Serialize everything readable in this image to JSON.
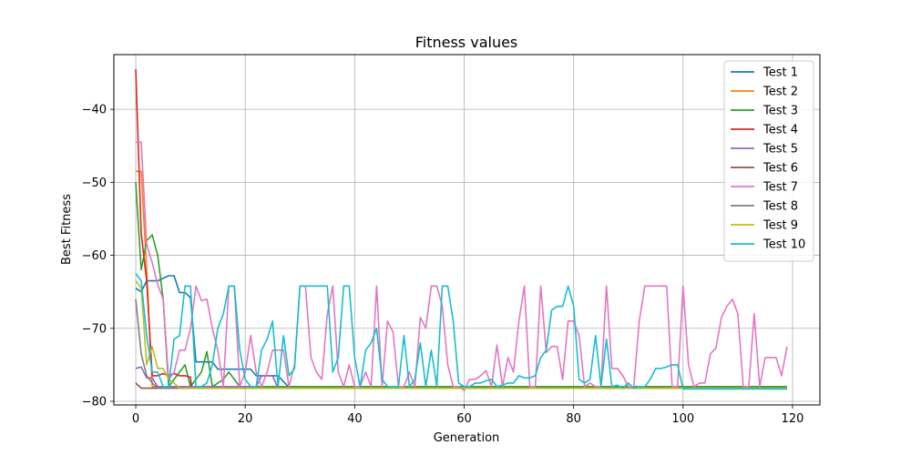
{
  "chart_data": {
    "type": "line",
    "title": "Fitness values",
    "xlabel": "Generation",
    "ylabel": "Best Fitness",
    "xlim": [
      -4,
      125
    ],
    "ylim": [
      -80.5,
      -32.5
    ],
    "xticks": [
      0,
      20,
      40,
      60,
      80,
      100,
      120
    ],
    "yticks": [
      -80,
      -70,
      -60,
      -50,
      -40
    ],
    "grid": true,
    "legend_position": "top-right",
    "series": [
      {
        "name": "Test 1",
        "color": "#1f77b4",
        "points": [
          [
            0,
            -64.5
          ],
          [
            1,
            -65.0
          ],
          [
            2,
            -63.5
          ],
          [
            4,
            -63.5
          ],
          [
            6,
            -62.8
          ],
          [
            7,
            -62.8
          ],
          [
            8,
            -65.1
          ],
          [
            9,
            -65.1
          ],
          [
            10,
            -65.8
          ],
          [
            11,
            -74.6
          ],
          [
            14,
            -74.6
          ],
          [
            15,
            -75.6
          ],
          [
            17,
            -75.6
          ],
          [
            19,
            -75.6
          ],
          [
            21,
            -75.6
          ],
          [
            22,
            -76.5
          ],
          [
            26,
            -76.5
          ],
          [
            28,
            -78.1
          ],
          [
            119,
            -78.1
          ]
        ]
      },
      {
        "name": "Test 2",
        "color": "#ff7f0e",
        "points": [
          [
            0,
            -48.5
          ],
          [
            1,
            -48.5
          ],
          [
            2,
            -62.0
          ],
          [
            3,
            -78.0
          ],
          [
            119,
            -78.0
          ]
        ]
      },
      {
        "name": "Test 3",
        "color": "#2ca02c",
        "points": [
          [
            0,
            -50.0
          ],
          [
            1,
            -62.0
          ],
          [
            2,
            -58.0
          ],
          [
            3,
            -57.2
          ],
          [
            4,
            -60.0
          ],
          [
            5,
            -66.0
          ],
          [
            6,
            -78.0
          ],
          [
            8,
            -76.0
          ],
          [
            9,
            -75.0
          ],
          [
            10,
            -78.0
          ],
          [
            11,
            -77.0
          ],
          [
            12,
            -76.0
          ],
          [
            13,
            -73.2
          ],
          [
            14,
            -78.0
          ],
          [
            16,
            -77.0
          ],
          [
            17,
            -76.0
          ],
          [
            19,
            -78.0
          ],
          [
            119,
            -78.0
          ]
        ]
      },
      {
        "name": "Test 4",
        "color": "#d62728",
        "points": [
          [
            0,
            -34.5
          ],
          [
            1,
            -57.0
          ],
          [
            2,
            -63.5
          ],
          [
            3,
            -76.5
          ],
          [
            4,
            -76.5
          ],
          [
            5,
            -76.2
          ],
          [
            6,
            -76.5
          ],
          [
            7,
            -76.2
          ],
          [
            8,
            -76.5
          ],
          [
            9,
            -76.5
          ],
          [
            10,
            -76.7
          ],
          [
            10.2,
            -78.2
          ],
          [
            119,
            -78.2
          ]
        ]
      },
      {
        "name": "Test 5",
        "color": "#9467bd",
        "points": [
          [
            0,
            -75.5
          ],
          [
            1,
            -75.3
          ],
          [
            2,
            -76.8
          ],
          [
            3,
            -76.8
          ],
          [
            4,
            -78.0
          ],
          [
            22,
            -78.0
          ],
          [
            23,
            -76.5
          ],
          [
            25,
            -76.5
          ],
          [
            26,
            -78.2
          ],
          [
            119,
            -78.2
          ]
        ]
      },
      {
        "name": "Test 6",
        "color": "#8c564b",
        "points": [
          [
            0,
            -77.5
          ],
          [
            1,
            -78.2
          ],
          [
            119,
            -78.2
          ]
        ]
      },
      {
        "name": "Test 7",
        "color": "#e377c2",
        "points": [
          [
            0,
            -44.5
          ],
          [
            1,
            -44.5
          ],
          [
            2,
            -58.5
          ],
          [
            3,
            -61.0
          ],
          [
            4,
            -64.0
          ],
          [
            5,
            -66.0
          ],
          [
            6,
            -77.0
          ],
          [
            7,
            -76.0
          ],
          [
            8,
            -73.0
          ],
          [
            9,
            -73.0
          ],
          [
            10,
            -70.0
          ],
          [
            11,
            -64.2
          ],
          [
            12,
            -66.2
          ],
          [
            13,
            -66.0
          ],
          [
            14,
            -70.0
          ],
          [
            15,
            -73.0
          ],
          [
            16,
            -78.0
          ],
          [
            17,
            -64.2
          ],
          [
            18,
            -64.2
          ],
          [
            19,
            -78.0
          ],
          [
            20,
            -76.0
          ],
          [
            21,
            -71.0
          ],
          [
            22,
            -76.0
          ],
          [
            23,
            -78.0
          ],
          [
            24,
            -76.0
          ],
          [
            25,
            -73.0
          ],
          [
            26,
            -73.0
          ],
          [
            27,
            -73.0
          ],
          [
            28,
            -78.0
          ],
          [
            29,
            -75.0
          ],
          [
            30,
            -64.2
          ],
          [
            31,
            -64.2
          ],
          [
            32,
            -74.0
          ],
          [
            33,
            -76.0
          ],
          [
            34,
            -77.0
          ],
          [
            35,
            -68.0
          ],
          [
            36,
            -64.2
          ],
          [
            37,
            -76.0
          ],
          [
            38,
            -78.0
          ],
          [
            39,
            -75.0
          ],
          [
            40,
            -78.0
          ],
          [
            41,
            -78.0
          ],
          [
            42,
            -76.0
          ],
          [
            43,
            -78.0
          ],
          [
            44,
            -64.2
          ],
          [
            45,
            -78.0
          ],
          [
            46,
            -69.0
          ],
          [
            47,
            -70.5
          ],
          [
            48,
            -78.0
          ],
          [
            49,
            -78.0
          ],
          [
            50,
            -76.0
          ],
          [
            51,
            -78.0
          ],
          [
            52,
            -68.5
          ],
          [
            53,
            -70.0
          ],
          [
            54,
            -64.2
          ],
          [
            55,
            -64.2
          ],
          [
            56,
            -67.0
          ],
          [
            57,
            -75.0
          ],
          [
            58,
            -78.0
          ],
          [
            59,
            -78.0
          ],
          [
            60,
            -78.5
          ],
          [
            61,
            -77.0
          ],
          [
            62,
            -77.0
          ],
          [
            63,
            -76.5
          ],
          [
            64,
            -75.8
          ],
          [
            65,
            -78.0
          ],
          [
            66,
            -72.3
          ],
          [
            67,
            -78.0
          ],
          [
            68,
            -74.0
          ],
          [
            69,
            -76.0
          ],
          [
            70,
            -69.0
          ],
          [
            71,
            -64.2
          ],
          [
            72,
            -78.0
          ],
          [
            73,
            -78.0
          ],
          [
            74,
            -64.2
          ],
          [
            75,
            -73.3
          ],
          [
            76,
            -72.5
          ],
          [
            77,
            -72.5
          ],
          [
            78,
            -77.0
          ],
          [
            79,
            -69.0
          ],
          [
            80,
            -69.0
          ],
          [
            81,
            -71.0
          ],
          [
            82,
            -78.0
          ],
          [
            83,
            -77.5
          ],
          [
            84,
            -78.0
          ],
          [
            85,
            -78.0
          ],
          [
            86,
            -64.2
          ],
          [
            87,
            -75.5
          ],
          [
            88,
            -75.5
          ],
          [
            89,
            -76.5
          ],
          [
            90,
            -78.0
          ],
          [
            91,
            -78.0
          ],
          [
            92,
            -69.0
          ],
          [
            93,
            -64.2
          ],
          [
            94,
            -64.2
          ],
          [
            95,
            -64.2
          ],
          [
            96,
            -64.2
          ],
          [
            97,
            -64.2
          ],
          [
            98,
            -78.0
          ],
          [
            99,
            -78.0
          ],
          [
            100,
            -64.2
          ],
          [
            101,
            -75.0
          ],
          [
            102,
            -78.0
          ],
          [
            103,
            -77.5
          ],
          [
            104,
            -77.5
          ],
          [
            105,
            -73.5
          ],
          [
            106,
            -72.7
          ],
          [
            107,
            -68.5
          ],
          [
            108,
            -67.0
          ],
          [
            109,
            -66.0
          ],
          [
            110,
            -68.0
          ],
          [
            111,
            -78.0
          ],
          [
            112,
            -78.0
          ],
          [
            113,
            -68.0
          ],
          [
            114,
            -78.0
          ],
          [
            115,
            -74.0
          ],
          [
            116,
            -74.0
          ],
          [
            117,
            -74.0
          ],
          [
            118,
            -76.5
          ],
          [
            119,
            -72.5
          ]
        ]
      },
      {
        "name": "Test 8",
        "color": "#7f7f7f",
        "points": [
          [
            0,
            -66.0
          ],
          [
            1,
            -73.5
          ],
          [
            2,
            -76.5
          ],
          [
            3,
            -77.5
          ],
          [
            4,
            -78.2
          ],
          [
            119,
            -78.2
          ]
        ]
      },
      {
        "name": "Test 9",
        "color": "#bcbd22",
        "points": [
          [
            0,
            -63.5
          ],
          [
            1,
            -64.5
          ],
          [
            2,
            -75.0
          ],
          [
            3,
            -72.5
          ],
          [
            4,
            -75.5
          ],
          [
            5,
            -75.5
          ],
          [
            6,
            -77.0
          ],
          [
            7,
            -77.5
          ],
          [
            8,
            -78.2
          ],
          [
            119,
            -78.2
          ]
        ]
      },
      {
        "name": "Test 10",
        "color": "#17becf",
        "points": [
          [
            0,
            -62.5
          ],
          [
            1,
            -63.5
          ],
          [
            2,
            -71.0
          ],
          [
            3,
            -76.0
          ],
          [
            4,
            -76.0
          ],
          [
            5,
            -78.0
          ],
          [
            6,
            -78.0
          ],
          [
            7,
            -71.5
          ],
          [
            8,
            -71.0
          ],
          [
            9,
            -64.2
          ],
          [
            10,
            -64.2
          ],
          [
            11,
            -78.0
          ],
          [
            12,
            -78.0
          ],
          [
            13,
            -77.5
          ],
          [
            14,
            -75.0
          ],
          [
            15,
            -70.0
          ],
          [
            16,
            -68.0
          ],
          [
            17,
            -64.2
          ],
          [
            18,
            -64.2
          ],
          [
            19,
            -73.0
          ],
          [
            20,
            -77.0
          ],
          [
            21,
            -78.0
          ],
          [
            22,
            -78.0
          ],
          [
            23,
            -73.0
          ],
          [
            24,
            -71.5
          ],
          [
            25,
            -69.0
          ],
          [
            26,
            -78.0
          ],
          [
            27,
            -71.0
          ],
          [
            28,
            -76.5
          ],
          [
            29,
            -75.5
          ],
          [
            30,
            -64.2
          ],
          [
            31,
            -64.2
          ],
          [
            32,
            -64.2
          ],
          [
            33,
            -64.2
          ],
          [
            34,
            -64.2
          ],
          [
            35,
            -64.2
          ],
          [
            36,
            -76.0
          ],
          [
            37,
            -74.0
          ],
          [
            38,
            -64.2
          ],
          [
            39,
            -64.2
          ],
          [
            40,
            -74.0
          ],
          [
            41,
            -78.0
          ],
          [
            42,
            -73.0
          ],
          [
            43,
            -72.0
          ],
          [
            44,
            -70.0
          ],
          [
            45,
            -77.0
          ],
          [
            46,
            -78.0
          ],
          [
            47,
            -78.0
          ],
          [
            48,
            -78.0
          ],
          [
            49,
            -71.0
          ],
          [
            50,
            -78.0
          ],
          [
            51,
            -77.0
          ],
          [
            52,
            -72.0
          ],
          [
            53,
            -78.0
          ],
          [
            54,
            -73.0
          ],
          [
            55,
            -78.0
          ],
          [
            56,
            -64.2
          ],
          [
            57,
            -64.2
          ],
          [
            58,
            -69.0
          ],
          [
            59,
            -77.5
          ],
          [
            60,
            -78.0
          ],
          [
            61,
            -78.0
          ],
          [
            62,
            -77.5
          ],
          [
            63,
            -77.5
          ],
          [
            64,
            -77.2
          ],
          [
            65,
            -77.0
          ],
          [
            66,
            -78.0
          ],
          [
            67,
            -77.8
          ],
          [
            68,
            -77.5
          ],
          [
            69,
            -77.5
          ],
          [
            70,
            -76.5
          ],
          [
            71,
            -76.8
          ],
          [
            72,
            -76.8
          ],
          [
            73,
            -76.5
          ],
          [
            74,
            -74.0
          ],
          [
            75,
            -73.0
          ],
          [
            76,
            -67.5
          ],
          [
            77,
            -67.0
          ],
          [
            78,
            -67.0
          ],
          [
            79,
            -64.2
          ],
          [
            80,
            -67.0
          ],
          [
            81,
            -77.0
          ],
          [
            82,
            -77.5
          ],
          [
            83,
            -77.0
          ],
          [
            84,
            -71.0
          ],
          [
            85,
            -78.0
          ],
          [
            86,
            -71.5
          ],
          [
            87,
            -78.0
          ],
          [
            88,
            -77.8
          ],
          [
            89,
            -78.2
          ],
          [
            90,
            -77.5
          ],
          [
            91,
            -78.2
          ],
          [
            92,
            -78.0
          ],
          [
            93,
            -78.0
          ],
          [
            94,
            -77.0
          ],
          [
            95,
            -75.5
          ],
          [
            96,
            -75.5
          ],
          [
            97,
            -75.3
          ],
          [
            98,
            -75.0
          ],
          [
            99,
            -75.0
          ],
          [
            100,
            -78.3
          ],
          [
            119,
            -78.3
          ]
        ]
      }
    ]
  }
}
